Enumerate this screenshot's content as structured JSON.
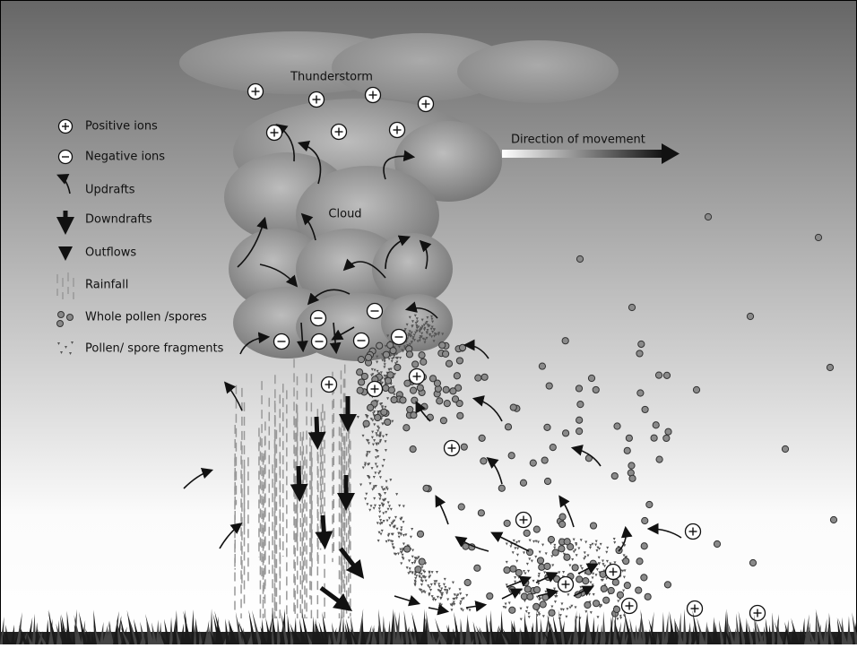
{
  "title": "Thunderstorm",
  "cloud_label": "Cloud",
  "direction_label": "Direction of movement",
  "legend": [
    {
      "label": "Positive ions"
    },
    {
      "label": "Negative ions"
    },
    {
      "label": "Updrafts"
    },
    {
      "label": "Downdrafts"
    },
    {
      "label": "Outflows"
    },
    {
      "label": "Rainfall"
    },
    {
      "label": "Whole pollen /spores"
    },
    {
      "label": "Pollen/ spore fragments"
    }
  ]
}
